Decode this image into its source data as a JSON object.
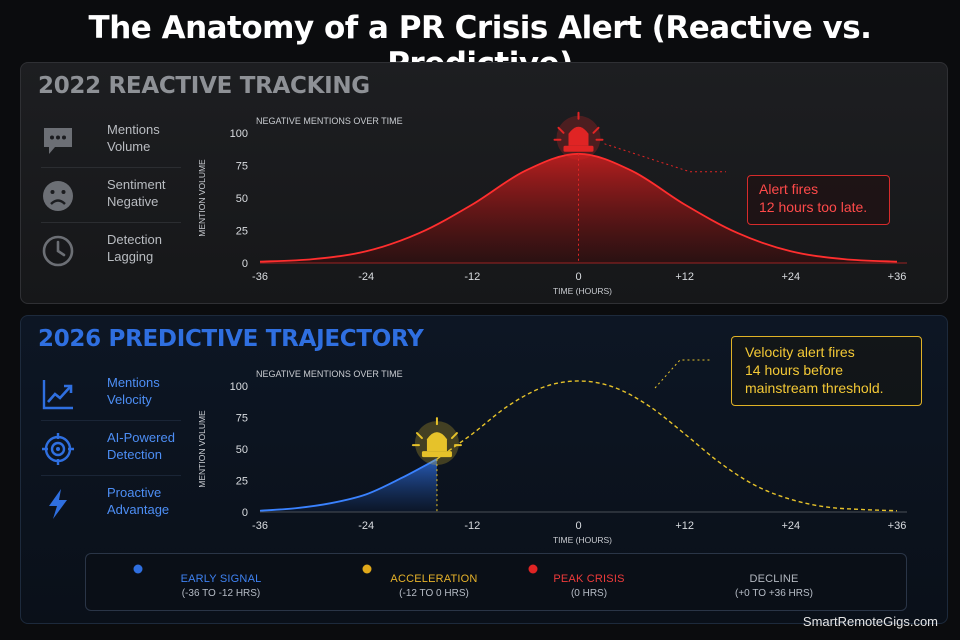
{
  "title": "The Anatomy of a PR Crisis Alert (Reactive vs. Predictive)",
  "colors": {
    "reactive": "#e02424",
    "predictive_blue": "#2f6fe0",
    "predictive_yellow": "#e6c22a",
    "early_signal": "#2f6fe0",
    "acceleration": "#e0a81a",
    "peak_crisis": "#e02424",
    "decline": "#9aa0a8"
  },
  "reactive": {
    "heading": "2022 REACTIVE TRACKING",
    "metrics": [
      {
        "icon": "speech-bubble-icon",
        "label": "Mentions\nVolume"
      },
      {
        "icon": "sad-face-icon",
        "label": "Sentiment\nNegative"
      },
      {
        "icon": "clock-icon",
        "label": "Detection\nLagging"
      }
    ],
    "callout": "Alert fires\n12 hours too late.",
    "alert_icon": "red-siren-icon"
  },
  "predictive": {
    "heading": "2026 PREDICTIVE TRAJECTORY",
    "metrics": [
      {
        "icon": "trend-up-icon",
        "label": "Mentions\nVelocity"
      },
      {
        "icon": "target-icon",
        "label": "AI-Powered\nDetection"
      },
      {
        "icon": "lightning-icon",
        "label": "Proactive\nAdvantage"
      }
    ],
    "callout": "Velocity alert fires\n14 hours before\nmainstream threshold.",
    "alert_icon": "yellow-siren-icon"
  },
  "chart_data": [
    {
      "type": "area",
      "title": "NEGATIVE MENTIONS OVER TIME",
      "xlabel": "TIME (HOURS)",
      "ylabel": "MENTION VOLUME",
      "xticks": [
        "-36",
        "-24",
        "-12",
        "0",
        "+12",
        "+24",
        "+36"
      ],
      "yticks": [
        "0",
        "25",
        "50",
        "75",
        "100"
      ],
      "xlim": [
        -36,
        36
      ],
      "ylim": [
        0,
        100
      ],
      "grid": false,
      "series": [
        {
          "style": "filled-area",
          "x": [
            -36,
            -30,
            -24,
            -18,
            -12,
            -6,
            0,
            6,
            12,
            18,
            24,
            30,
            36
          ],
          "y": [
            1,
            3,
            9,
            23,
            45,
            71,
            84,
            71,
            45,
            23,
            9,
            3,
            1
          ]
        }
      ],
      "alert_x": 0
    },
    {
      "type": "area",
      "title": "NEGATIVE MENTIONS OVER TIME",
      "xlabel": "TIME (HOURS)",
      "ylabel": "MENTION VOLUME",
      "xticks": [
        "-36",
        "-24",
        "-12",
        "0",
        "+12",
        "+24",
        "+36"
      ],
      "yticks": [
        "0",
        "25",
        "50",
        "75",
        "100"
      ],
      "xlim": [
        -36,
        36
      ],
      "ylim": [
        0,
        100
      ],
      "grid": false,
      "series": [
        {
          "style": "filled-area",
          "x": [
            -36,
            -32,
            -28,
            -24,
            -20,
            -16
          ],
          "y": [
            1,
            3,
            7,
            14,
            27,
            42
          ]
        },
        {
          "style": "dashed-projection",
          "x": [
            -16,
            -12,
            -8,
            -4,
            0,
            4,
            8,
            12,
            16,
            20,
            24,
            28,
            32,
            36
          ],
          "y": [
            42,
            62,
            84,
            99,
            104,
            99,
            84,
            62,
            39,
            21,
            10,
            4,
            2,
            1
          ]
        }
      ],
      "alert_x": -16
    }
  ],
  "timeline": [
    {
      "name": "EARLY SIGNAL",
      "range": "(-36 TO -12 HRS)"
    },
    {
      "name": "ACCELERATION",
      "range": "(-12 TO 0 HRS)"
    },
    {
      "name": "PEAK CRISIS",
      "range": "(0 HRS)"
    },
    {
      "name": "DECLINE",
      "range": "(+0 TO +36 HRS)"
    }
  ],
  "footer": "SmartRemoteGigs.com"
}
